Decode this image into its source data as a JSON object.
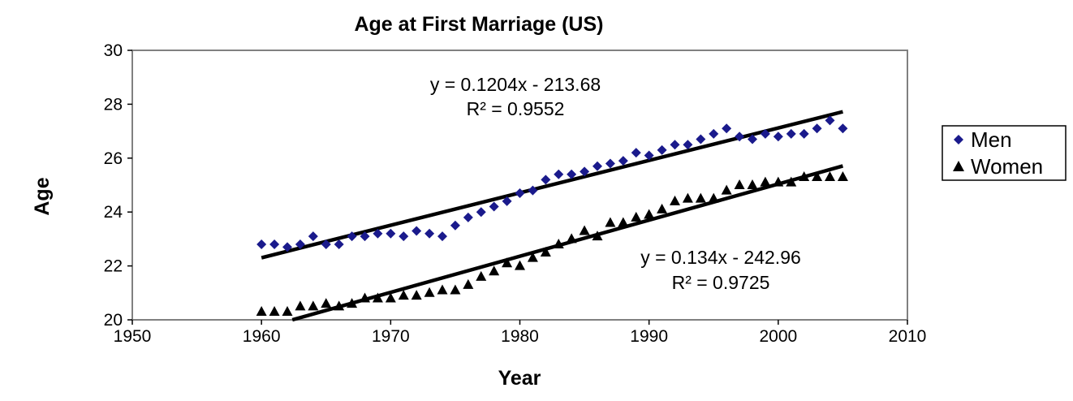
{
  "chart_data": {
    "type": "scatter",
    "title": "Age at First Marriage (US)",
    "xlabel": "Year",
    "ylabel": "Age",
    "xlim": [
      1950,
      2010
    ],
    "ylim": [
      20,
      30
    ],
    "xticks": [
      1950,
      1960,
      1970,
      1980,
      1990,
      2000,
      2010
    ],
    "yticks": [
      20,
      22,
      24,
      26,
      28,
      30
    ],
    "grid": false,
    "legend_position": "right",
    "series": [
      {
        "name": "Men",
        "marker": "diamond",
        "color": "#1a1a8c",
        "x": [
          1960,
          1961,
          1962,
          1963,
          1964,
          1965,
          1966,
          1967,
          1968,
          1969,
          1970,
          1971,
          1972,
          1973,
          1974,
          1975,
          1976,
          1977,
          1978,
          1979,
          1980,
          1981,
          1982,
          1983,
          1984,
          1985,
          1986,
          1987,
          1988,
          1989,
          1990,
          1991,
          1992,
          1993,
          1994,
          1995,
          1996,
          1997,
          1998,
          1999,
          2000,
          2001,
          2002,
          2003,
          2004,
          2005
        ],
        "y": [
          22.8,
          22.8,
          22.7,
          22.8,
          23.1,
          22.8,
          22.8,
          23.1,
          23.1,
          23.2,
          23.2,
          23.1,
          23.3,
          23.2,
          23.1,
          23.5,
          23.8,
          24.0,
          24.2,
          24.4,
          24.7,
          24.8,
          25.2,
          25.4,
          25.4,
          25.5,
          25.7,
          25.8,
          25.9,
          26.2,
          26.1,
          26.3,
          26.5,
          26.5,
          26.7,
          26.9,
          27.1,
          26.8,
          26.7,
          26.9,
          26.8,
          26.9,
          26.9,
          27.1,
          27.4,
          27.1
        ],
        "trendline": {
          "slope": 0.1204,
          "intercept": -213.68,
          "equation": "y = 0.1204x - 213.68",
          "r2": "R² = 0.9552"
        }
      },
      {
        "name": "Women",
        "marker": "triangle",
        "color": "#000000",
        "x": [
          1960,
          1961,
          1962,
          1963,
          1964,
          1965,
          1966,
          1967,
          1968,
          1969,
          1970,
          1971,
          1972,
          1973,
          1974,
          1975,
          1976,
          1977,
          1978,
          1979,
          1980,
          1981,
          1982,
          1983,
          1984,
          1985,
          1986,
          1987,
          1988,
          1989,
          1990,
          1991,
          1992,
          1993,
          1994,
          1995,
          1996,
          1997,
          1998,
          1999,
          2000,
          2001,
          2002,
          2003,
          2004,
          2005
        ],
        "y": [
          20.3,
          20.3,
          20.3,
          20.5,
          20.5,
          20.6,
          20.5,
          20.6,
          20.8,
          20.8,
          20.8,
          20.9,
          20.9,
          21.0,
          21.1,
          21.1,
          21.3,
          21.6,
          21.8,
          22.1,
          22.0,
          22.3,
          22.5,
          22.8,
          23.0,
          23.3,
          23.1,
          23.6,
          23.6,
          23.8,
          23.9,
          24.1,
          24.4,
          24.5,
          24.5,
          24.5,
          24.8,
          25.0,
          25.0,
          25.1,
          25.1,
          25.1,
          25.3,
          25.3,
          25.3,
          25.3
        ],
        "trendline": {
          "slope": 0.134,
          "intercept": -242.96,
          "equation": "y = 0.134x - 242.96",
          "r2": "R² = 0.9725"
        }
      }
    ]
  }
}
